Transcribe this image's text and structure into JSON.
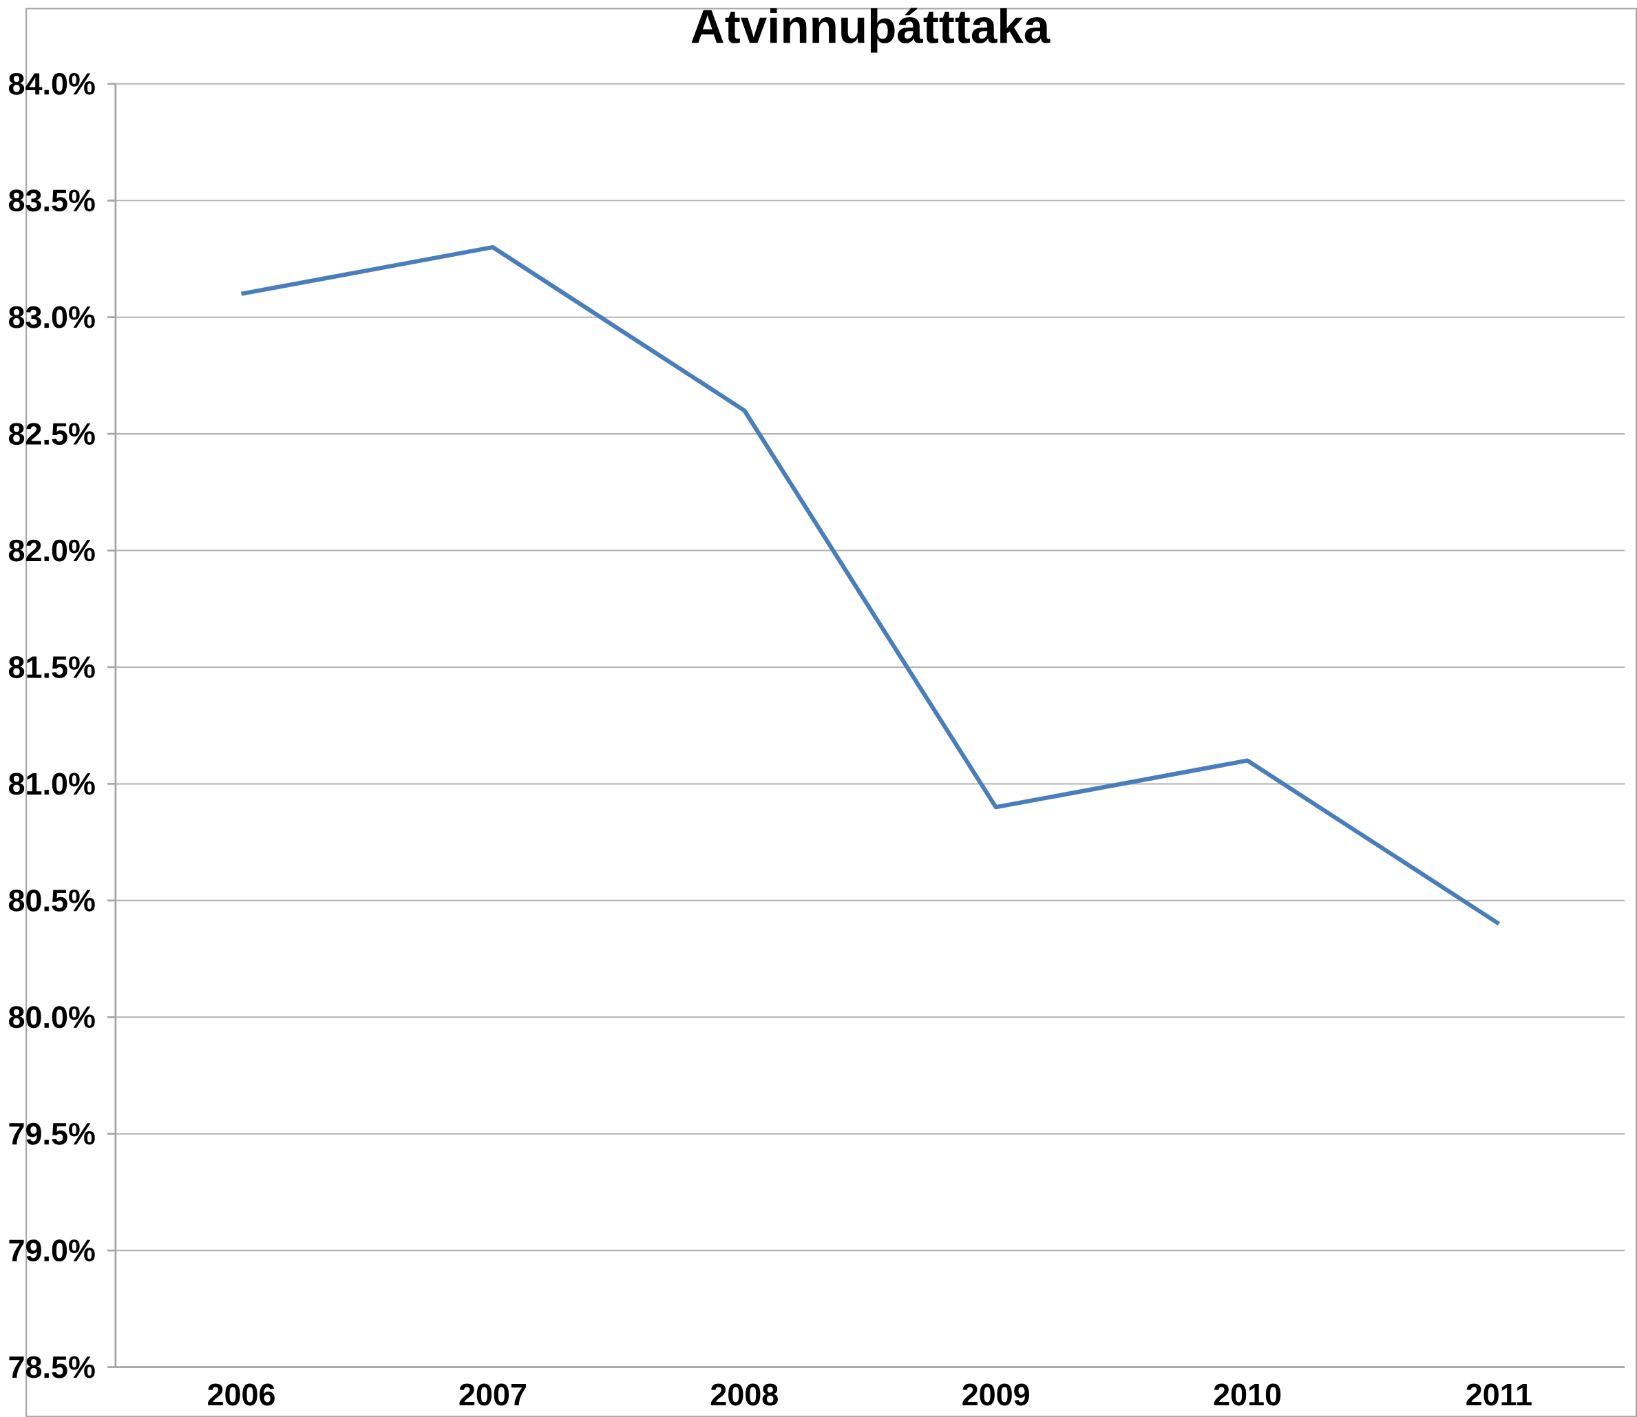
{
  "chart_data": {
    "type": "line",
    "title": "Atvinnuþátttaka",
    "categories": [
      "2006",
      "2007",
      "2008",
      "2009",
      "2010",
      "2011"
    ],
    "values": [
      83.1,
      83.3,
      82.6,
      80.9,
      81.1,
      80.4
    ],
    "color": "#4a7ebb",
    "ylim": [
      78.5,
      84.0
    ],
    "yticks": [
      {
        "value": 78.5,
        "label": "78.5%"
      },
      {
        "value": 79.0,
        "label": "79.0%"
      },
      {
        "value": 79.5,
        "label": "79.5%"
      },
      {
        "value": 80.0,
        "label": "80.0%"
      },
      {
        "value": 80.5,
        "label": "80.5%"
      },
      {
        "value": 81.0,
        "label": "81.0%"
      },
      {
        "value": 81.5,
        "label": "81.5%"
      },
      {
        "value": 82.0,
        "label": "82.0%"
      },
      {
        "value": 82.5,
        "label": "82.5%"
      },
      {
        "value": 83.0,
        "label": "83.0%"
      },
      {
        "value": 83.5,
        "label": "83.5%"
      },
      {
        "value": 84.0,
        "label": "84.0%"
      }
    ],
    "grid": "y"
  }
}
